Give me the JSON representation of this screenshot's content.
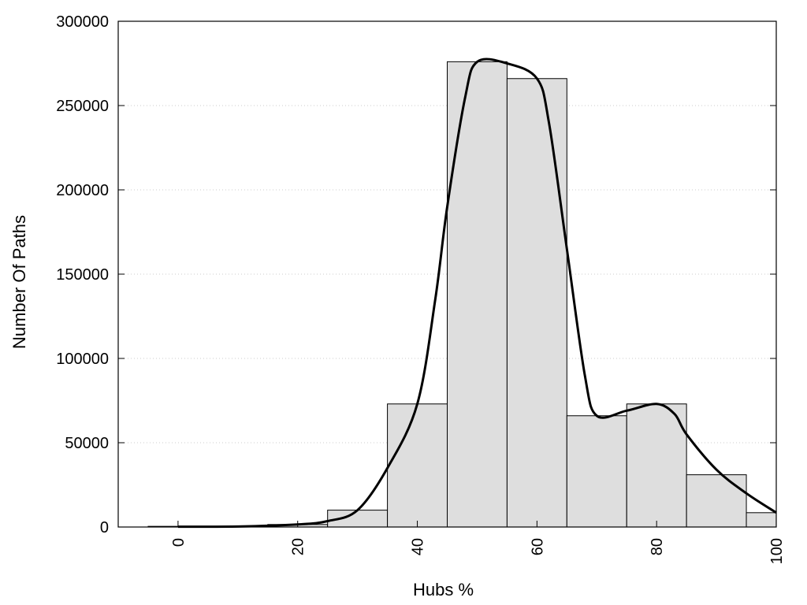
{
  "chart_data": {
    "type": "bar",
    "title": "",
    "xlabel": "Hubs %",
    "ylabel": "Number Of Paths",
    "xlim": [
      -10,
      100
    ],
    "ylim": [
      0,
      300000
    ],
    "x_ticks": [
      "0",
      "20",
      "40",
      "60",
      "80",
      "100"
    ],
    "y_ticks": [
      "0",
      "50000",
      "100000",
      "150000",
      "200000",
      "250000",
      "300000"
    ],
    "grid": "horizontal dotted",
    "bar_color": "#dedede",
    "bar_edge_color": "#000000",
    "bins": [
      {
        "center": 0,
        "value": 400
      },
      {
        "center": 10,
        "value": 300
      },
      {
        "center": 20,
        "value": 1500
      },
      {
        "center": 30,
        "value": 10000
      },
      {
        "center": 40,
        "value": 73000
      },
      {
        "center": 50,
        "value": 276000
      },
      {
        "center": 60,
        "value": 266000
      },
      {
        "center": 70,
        "value": 66000
      },
      {
        "center": 80,
        "value": 73000
      },
      {
        "center": 90,
        "value": 31000
      },
      {
        "center": 100,
        "value": 8500
      }
    ],
    "series": [
      {
        "type": "line",
        "color": "#000000",
        "points": [
          [
            0,
            200
          ],
          [
            10,
            300
          ],
          [
            20,
            1500
          ],
          [
            25,
            3500
          ],
          [
            30,
            10000
          ],
          [
            35,
            35000
          ],
          [
            40,
            73000
          ],
          [
            43,
            135000
          ],
          [
            45,
            190000
          ],
          [
            48,
            255000
          ],
          [
            50,
            276000
          ],
          [
            55,
            275000
          ],
          [
            60,
            266000
          ],
          [
            62,
            240000
          ],
          [
            65,
            165000
          ],
          [
            68,
            90000
          ],
          [
            70,
            66000
          ],
          [
            75,
            69000
          ],
          [
            80,
            73000
          ],
          [
            83,
            67000
          ],
          [
            85,
            55000
          ],
          [
            90,
            34000
          ],
          [
            95,
            20000
          ],
          [
            100,
            8500
          ]
        ]
      }
    ]
  }
}
